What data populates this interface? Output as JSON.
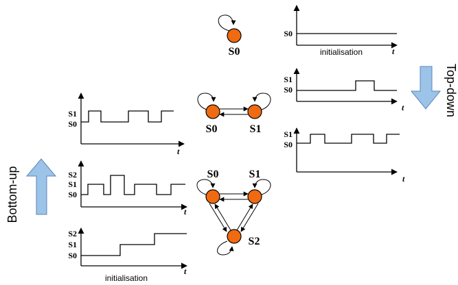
{
  "labels": {
    "bottom_up": "Bottom-up",
    "top_down": "Top-down",
    "initialisation_top": "initialisation",
    "initialisation_bottom": "initialisation",
    "t": "t"
  },
  "states": {
    "s0": "S0",
    "s1": "S1",
    "s2": "S2"
  },
  "colors": {
    "state_fill": "#f06a12",
    "arrow_fill": "#9cc3e8"
  }
}
